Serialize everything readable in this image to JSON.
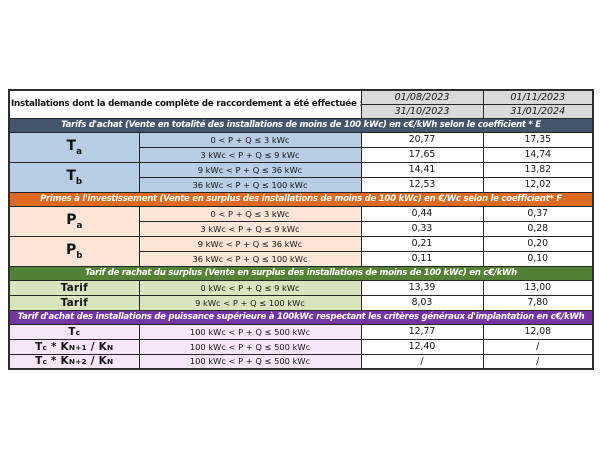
{
  "header": {
    "label": "Installations dont la demande complète de raccordement a été effectuée :",
    "periods": [
      {
        "start": "01/08/2023",
        "end": "31/10/2023"
      },
      {
        "start": "01/11/2023",
        "end": "31/01/2024"
      }
    ]
  },
  "sections": [
    {
      "title": "Tarifs d'achat (Vente en totalité des installations de moins de 100 kWc) en c€/kWh selon le coefficient * E",
      "theme": "blue",
      "groups": [
        {
          "label_tokens": [
            {
              "text": "T"
            },
            {
              "text": "a",
              "style": "sub"
            }
          ],
          "rows": [
            {
              "condition": "0 < P + Q ≤ 3 kWc",
              "values": [
                "20,77",
                "17,35"
              ]
            },
            {
              "condition": "3 kWc < P + Q ≤ 9 kWc",
              "values": [
                "17,65",
                "14,74"
              ]
            }
          ]
        },
        {
          "label_tokens": [
            {
              "text": "T"
            },
            {
              "text": "b",
              "style": "sub"
            }
          ],
          "rows": [
            {
              "condition": "9 kWc < P + Q ≤ 36 kWc",
              "values": [
                "14,41",
                "13,82"
              ]
            },
            {
              "condition": "36 kWc < P + Q ≤ 100 kWc",
              "values": [
                "12,53",
                "12,02"
              ]
            }
          ]
        }
      ]
    },
    {
      "title": "Primes à l'investissement (Vente en surplus des installations de moins de 100 kWc) en €/Wc selon le coefficient* F",
      "theme": "orange",
      "groups": [
        {
          "label_tokens": [
            {
              "text": "P"
            },
            {
              "text": "a",
              "style": "sub"
            }
          ],
          "rows": [
            {
              "condition": "0 < P + Q ≤ 3 kWc",
              "values": [
                "0,44",
                "0,37"
              ]
            },
            {
              "condition": "3 kWc < P + Q ≤ 9 kWc",
              "values": [
                "0,33",
                "0,28"
              ]
            }
          ]
        },
        {
          "label_tokens": [
            {
              "text": "P"
            },
            {
              "text": "b",
              "style": "sub"
            }
          ],
          "rows": [
            {
              "condition": "9 kWc < P + Q ≤ 36 kWc",
              "values": [
                "0,21",
                "0,20"
              ]
            },
            {
              "condition": "36 kWc < P + Q ≤ 100 kWc",
              "values": [
                "0,11",
                "0,10"
              ]
            }
          ]
        }
      ]
    },
    {
      "title": "Tarif de rachat du surplus (Vente en surplus des installations de moins de 100 kWc) en c€/kWh",
      "theme": "green",
      "groups": [
        {
          "label_tokens": [
            {
              "text": "Tarif"
            }
          ],
          "rows": [
            {
              "condition": "0 kWc < P + Q ≤ 9 kWc",
              "values": [
                "13,39",
                "13,00"
              ]
            }
          ]
        },
        {
          "label_tokens": [
            {
              "text": "Tarif"
            }
          ],
          "rows": [
            {
              "condition": "9 kWc < P + Q ≤ 100 kWc",
              "values": [
                "8,03",
                "7,80"
              ]
            }
          ]
        }
      ]
    },
    {
      "title": "Tarif d'achat des installations de puissance supérieure à 100kWc respectant les critères généraux d'implantation en c€/kWh",
      "theme": "purple",
      "groups": [
        {
          "label_tokens": [
            {
              "text": "T"
            },
            {
              "text": "c",
              "style": "sc"
            }
          ],
          "rows": [
            {
              "condition": "100 kWc < P + Q ≤ 500 kWc",
              "values": [
                "12,77",
                "12,08"
              ]
            }
          ]
        },
        {
          "label_tokens": [
            {
              "text": "T"
            },
            {
              "text": "c",
              "style": "sc"
            },
            {
              "text": " * K"
            },
            {
              "text": "N+1",
              "style": "sc"
            },
            {
              "text": " / K"
            },
            {
              "text": "N",
              "style": "sc"
            }
          ],
          "rows": [
            {
              "condition": "100 kWc < P + Q ≤ 500 kWc",
              "values": [
                "12,40",
                "/"
              ]
            }
          ]
        },
        {
          "label_tokens": [
            {
              "text": "T"
            },
            {
              "text": "c",
              "style": "sc"
            },
            {
              "text": " * K"
            },
            {
              "text": "N+2",
              "style": "sc"
            },
            {
              "text": " / K"
            },
            {
              "text": "N",
              "style": "sc"
            }
          ],
          "rows": [
            {
              "condition": "100 kWc < P + Q ≤ 500 kWc",
              "values": [
                "/",
                "/"
              ]
            }
          ]
        }
      ]
    }
  ],
  "colors": {
    "section_blue": "#44546a",
    "section_orange": "#dd6a1f",
    "section_green": "#538135",
    "section_purple": "#7534a4",
    "cell_blue": "#b8cce4",
    "cell_peach": "#fbe5d6",
    "cell_green": "#d8e4bc",
    "cell_lavender": "#f7e6f8",
    "date_cell_gray": "#d9d9d9",
    "section_text": "#ffffff",
    "body_text": "#141414"
  }
}
